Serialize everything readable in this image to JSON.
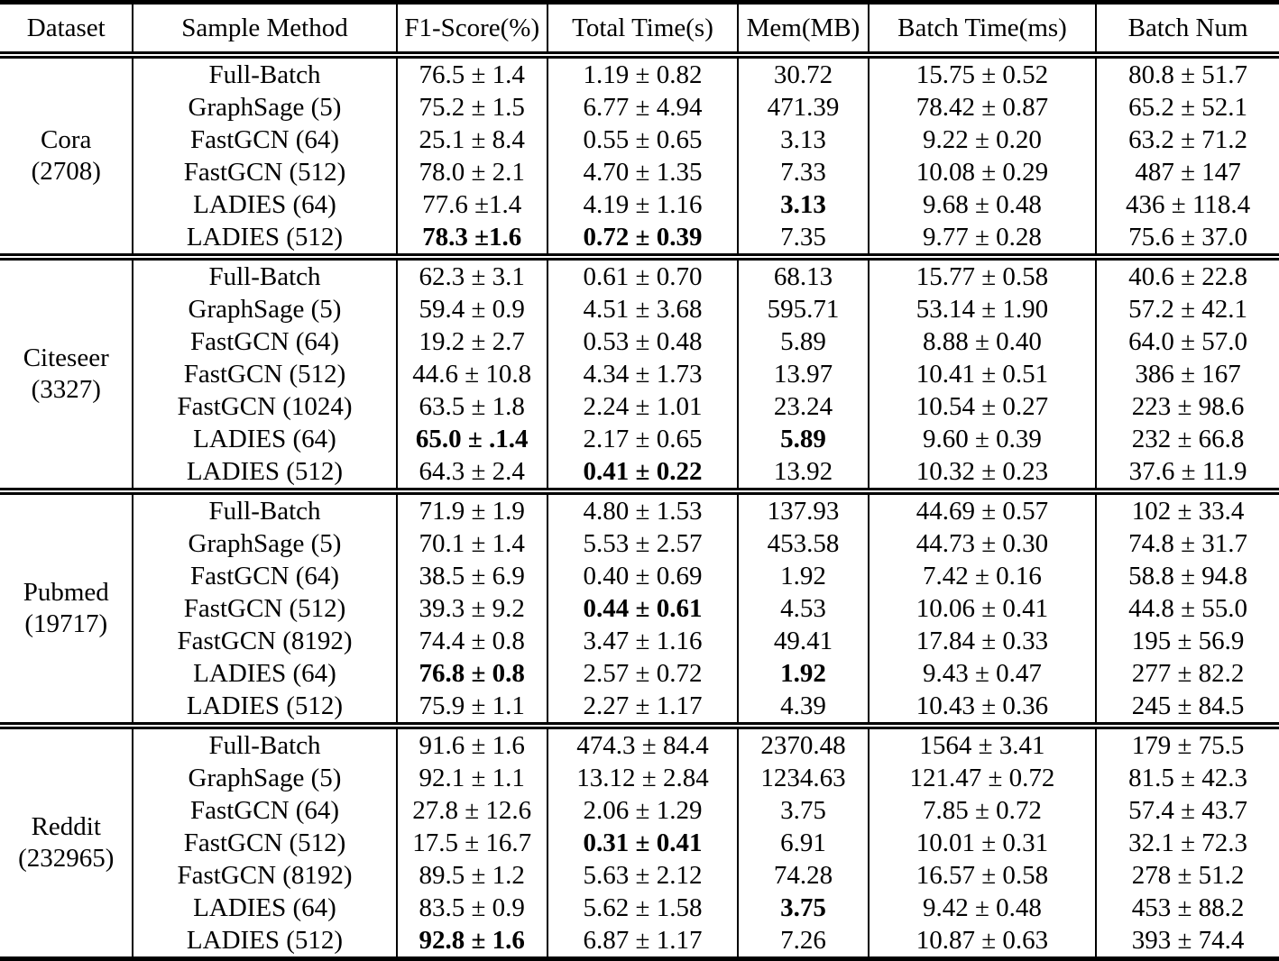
{
  "table": {
    "columns": [
      "Dataset",
      "Sample Method",
      "F1-Score(%)",
      "Total Time(s)",
      "Mem(MB)",
      "Batch Time(ms)",
      "Batch Num"
    ],
    "text_color": "#000000",
    "background_color": "#ffffff",
    "groups": [
      {
        "dataset": "Cora",
        "size": "(2708)",
        "rows": [
          {
            "method": "Full-Batch",
            "f1": "76.5 ± 1.4",
            "time": "1.19 ± 0.82",
            "mem": "30.72",
            "batch_time": "15.75 ± 0.52",
            "batch_num": "80.8 ± 51.7",
            "bold": []
          },
          {
            "method": "GraphSage (5)",
            "f1": "75.2 ± 1.5",
            "time": "6.77 ± 4.94",
            "mem": "471.39",
            "batch_time": "78.42 ± 0.87",
            "batch_num": "65.2 ± 52.1",
            "bold": []
          },
          {
            "method": "FastGCN (64)",
            "f1": "25.1 ± 8.4",
            "time": "0.55 ± 0.65",
            "mem": "3.13",
            "batch_time": "9.22 ± 0.20",
            "batch_num": "63.2 ± 71.2",
            "bold": []
          },
          {
            "method": "FastGCN (512)",
            "f1": "78.0 ± 2.1",
            "time": "4.70 ± 1.35",
            "mem": "7.33",
            "batch_time": "10.08 ± 0.29",
            "batch_num": "487 ± 147",
            "bold": []
          },
          {
            "method": "LADIES (64)",
            "f1": "77.6 ±1.4",
            "time": "4.19 ± 1.16",
            "mem": "3.13",
            "batch_time": "9.68 ± 0.48",
            "batch_num": "436 ± 118.4",
            "bold": [
              "mem"
            ]
          },
          {
            "method": "LADIES (512)",
            "f1": "78.3 ±1.6",
            "time": "0.72 ± 0.39",
            "mem": "7.35",
            "batch_time": "9.77 ± 0.28",
            "batch_num": "75.6 ± 37.0",
            "bold": [
              "f1",
              "time"
            ]
          }
        ]
      },
      {
        "dataset": "Citeseer",
        "size": "(3327)",
        "rows": [
          {
            "method": "Full-Batch",
            "f1": "62.3 ± 3.1",
            "time": "0.61 ± 0.70",
            "mem": "68.13",
            "batch_time": "15.77 ± 0.58",
            "batch_num": "40.6 ± 22.8",
            "bold": []
          },
          {
            "method": "GraphSage (5)",
            "f1": "59.4 ± 0.9",
            "time": "4.51 ± 3.68",
            "mem": "595.71",
            "batch_time": "53.14 ± 1.90",
            "batch_num": "57.2 ± 42.1",
            "bold": []
          },
          {
            "method": "FastGCN (64)",
            "f1": "19.2 ± 2.7",
            "time": "0.53 ± 0.48",
            "mem": "5.89",
            "batch_time": "8.88 ± 0.40",
            "batch_num": "64.0 ± 57.0",
            "bold": []
          },
          {
            "method": "FastGCN (512)",
            "f1": "44.6 ± 10.8",
            "time": "4.34 ± 1.73",
            "mem": "13.97",
            "batch_time": "10.41 ± 0.51",
            "batch_num": "386 ± 167",
            "bold": []
          },
          {
            "method": "FastGCN (1024)",
            "f1": "63.5 ± 1.8",
            "time": "2.24 ± 1.01",
            "mem": "23.24",
            "batch_time": "10.54 ± 0.27",
            "batch_num": "223 ± 98.6",
            "bold": []
          },
          {
            "method": "LADIES (64)",
            "f1": "65.0 ± .1.4",
            "time": "2.17 ± 0.65",
            "mem": "5.89",
            "batch_time": "9.60 ± 0.39",
            "batch_num": "232 ± 66.8",
            "bold": [
              "f1",
              "mem"
            ]
          },
          {
            "method": "LADIES (512)",
            "f1": "64.3 ± 2.4",
            "time": "0.41 ± 0.22",
            "mem": "13.92",
            "batch_time": "10.32 ± 0.23",
            "batch_num": "37.6 ± 11.9",
            "bold": [
              "time"
            ]
          }
        ]
      },
      {
        "dataset": "Pubmed",
        "size": "(19717)",
        "rows": [
          {
            "method": "Full-Batch",
            "f1": "71.9 ± 1.9",
            "time": "4.80 ± 1.53",
            "mem": "137.93",
            "batch_time": "44.69 ± 0.57",
            "batch_num": "102 ± 33.4",
            "bold": []
          },
          {
            "method": "GraphSage (5)",
            "f1": "70.1 ± 1.4",
            "time": "5.53 ± 2.57",
            "mem": "453.58",
            "batch_time": "44.73 ± 0.30",
            "batch_num": "74.8 ± 31.7",
            "bold": []
          },
          {
            "method": "FastGCN (64)",
            "f1": "38.5 ± 6.9",
            "time": "0.40 ± 0.69",
            "mem": "1.92",
            "batch_time": "7.42 ± 0.16",
            "batch_num": "58.8 ± 94.8",
            "bold": []
          },
          {
            "method": "FastGCN (512)",
            "f1": "39.3 ± 9.2",
            "time": "0.44 ± 0.61",
            "mem": "4.53",
            "batch_time": "10.06 ± 0.41",
            "batch_num": "44.8 ± 55.0",
            "bold": [
              "time"
            ]
          },
          {
            "method": "FastGCN (8192)",
            "f1": "74.4 ± 0.8",
            "time": "3.47 ± 1.16",
            "mem": "49.41",
            "batch_time": "17.84 ± 0.33",
            "batch_num": "195 ± 56.9",
            "bold": []
          },
          {
            "method": "LADIES (64)",
            "f1": "76.8 ± 0.8",
            "time": "2.57 ± 0.72",
            "mem": "1.92",
            "batch_time": "9.43 ± 0.47",
            "batch_num": "277 ± 82.2",
            "bold": [
              "f1",
              "mem"
            ]
          },
          {
            "method": "LADIES (512)",
            "f1": "75.9 ± 1.1",
            "time": "2.27 ± 1.17",
            "mem": "4.39",
            "batch_time": "10.43 ± 0.36",
            "batch_num": "245 ± 84.5",
            "bold": []
          }
        ]
      },
      {
        "dataset": "Reddit",
        "size": "(232965)",
        "rows": [
          {
            "method": "Full-Batch",
            "f1": "91.6 ± 1.6",
            "time": "474.3 ± 84.4",
            "mem": "2370.48",
            "batch_time": "1564 ± 3.41",
            "batch_num": "179 ± 75.5",
            "bold": []
          },
          {
            "method": "GraphSage (5)",
            "f1": "92.1 ± 1.1",
            "time": "13.12 ± 2.84",
            "mem": "1234.63",
            "batch_time": "121.47 ± 0.72",
            "batch_num": "81.5 ± 42.3",
            "bold": []
          },
          {
            "method": "FastGCN (64)",
            "f1": "27.8 ± 12.6",
            "time": "2.06 ± 1.29",
            "mem": "3.75",
            "batch_time": "7.85 ± 0.72",
            "batch_num": "57.4 ± 43.7",
            "bold": []
          },
          {
            "method": "FastGCN (512)",
            "f1": "17.5 ± 16.7",
            "time": "0.31 ± 0.41",
            "mem": "6.91",
            "batch_time": "10.01 ± 0.31",
            "batch_num": "32.1 ± 72.3",
            "bold": [
              "time"
            ]
          },
          {
            "method": "FastGCN (8192)",
            "f1": "89.5 ± 1.2",
            "time": "5.63 ± 2.12",
            "mem": "74.28",
            "batch_time": "16.57 ± 0.58",
            "batch_num": "278 ± 51.2",
            "bold": []
          },
          {
            "method": "LADIES (64)",
            "f1": "83.5 ± 0.9",
            "time": "5.62 ± 1.58",
            "mem": "3.75",
            "batch_time": "9.42 ± 0.48",
            "batch_num": "453 ± 88.2",
            "bold": [
              "mem"
            ]
          },
          {
            "method": "LADIES (512)",
            "f1": "92.8 ± 1.6",
            "time": "6.87 ± 1.17",
            "mem": "7.26",
            "batch_time": "10.87 ± 0.63",
            "batch_num": "393 ± 74.4",
            "bold": [
              "f1"
            ]
          }
        ]
      }
    ]
  }
}
